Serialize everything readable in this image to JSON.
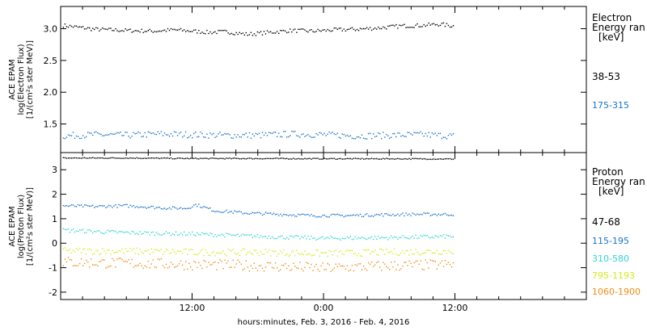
{
  "footer": "hours:minutes, Feb.  3, 2016 - Feb.  4, 2016",
  "x_ticks": [
    "12:00",
    "0:00",
    "12:00"
  ],
  "chart_data": [
    {
      "type": "scatter",
      "ylabel": [
        "ACE EPAM",
        "log(Electron Flux)",
        "[1/(cm²s ster MeV)]"
      ],
      "ylim": [
        1.05,
        3.35
      ],
      "y_ticks": [
        "3.0",
        "2.5",
        "2.0",
        "1.5"
      ],
      "y_tick_values": [
        3.0,
        2.5,
        2.0,
        1.5
      ],
      "x_range_hours": [
        0,
        48
      ],
      "legend_title": [
        "Electron",
        "Energy ran",
        "[keV]"
      ],
      "series": [
        {
          "name": "38-53",
          "color": "#000000",
          "x": [
            0.2,
            3,
            6,
            8.5,
            10.3,
            12,
            13.5,
            15,
            17,
            19,
            21,
            23,
            25,
            27,
            29,
            31,
            33,
            34.5,
            35.8
          ],
          "y": [
            3.06,
            3.0,
            2.98,
            2.97,
            2.99,
            2.97,
            2.95,
            2.96,
            2.92,
            2.95,
            2.98,
            2.97,
            2.99,
            3.0,
            3.02,
            3.05,
            3.06,
            3.08,
            3.05
          ]
        },
        {
          "name": "175-315",
          "color": "#1a73c8",
          "x": [
            0.2,
            3,
            6,
            9,
            12,
            15,
            18,
            21,
            24,
            27,
            30,
            33,
            35.8
          ],
          "y": [
            1.32,
            1.34,
            1.33,
            1.35,
            1.34,
            1.33,
            1.33,
            1.35,
            1.34,
            1.32,
            1.33,
            1.34,
            1.32
          ]
        }
      ]
    },
    {
      "type": "scatter",
      "ylabel": [
        "ACE EPAM",
        "log(Proton Flux)",
        "[1/(cm²s ster MeV)]"
      ],
      "ylim": [
        -2.3,
        3.7
      ],
      "y_ticks": [
        "3",
        "2",
        "1",
        "0",
        "-1",
        "-2"
      ],
      "y_tick_values": [
        3,
        2,
        1,
        0,
        -1,
        -2
      ],
      "x_range_hours": [
        0,
        48
      ],
      "legend_title": [
        "Proton",
        "Energy ran",
        "[keV]"
      ],
      "series": [
        {
          "name": "47-68",
          "color": "#000000",
          "x": [
            0.2,
            6,
            12,
            18,
            24,
            30,
            35.8
          ],
          "y": [
            3.5,
            3.5,
            3.48,
            3.48,
            3.47,
            3.47,
            3.46
          ]
        },
        {
          "name": "115-195",
          "color": "#1a73c8",
          "x": [
            0.2,
            3,
            6,
            8,
            10,
            11.5,
            12.3,
            14,
            17,
            20,
            23,
            26,
            29,
            32,
            35.8
          ],
          "y": [
            1.55,
            1.52,
            1.55,
            1.5,
            1.45,
            1.45,
            1.6,
            1.35,
            1.25,
            1.2,
            1.15,
            1.15,
            1.18,
            1.2,
            1.2
          ]
        },
        {
          "name": "310-580",
          "color": "#2fd6d0",
          "x": [
            0.2,
            6,
            12,
            18,
            24,
            30,
            35.8
          ],
          "y": [
            0.55,
            0.45,
            0.4,
            0.3,
            0.22,
            0.25,
            0.3
          ]
        },
        {
          "name": "795-1193",
          "color": "#d6ea1a",
          "x": [
            0.2,
            6,
            12,
            18,
            24,
            30,
            35.8
          ],
          "y": [
            -0.3,
            -0.3,
            -0.35,
            -0.35,
            -0.4,
            -0.35,
            -0.3
          ]
        },
        {
          "name": "1060-1900",
          "color": "#f08c14",
          "x": [
            0.2,
            6,
            12,
            18,
            24,
            30,
            35.8
          ],
          "y": [
            -0.75,
            -0.8,
            -0.85,
            -0.9,
            -1.0,
            -0.9,
            -0.85
          ]
        }
      ]
    }
  ]
}
